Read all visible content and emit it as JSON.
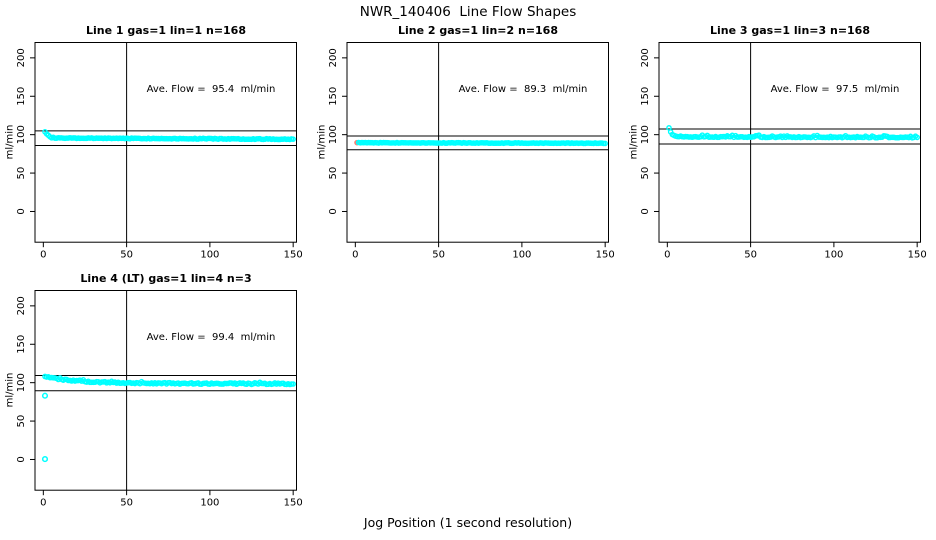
{
  "figure_title": "NWR_140406  Line Flow Shapes",
  "xlabel": "Jog Position (1 second resolution)",
  "colors": {
    "trace": "#00FFFF",
    "first_point": "#FA8072",
    "axis": "#000000",
    "background": "#FFFFFF"
  },
  "chart_data": [
    {
      "type": "scatter",
      "title": "Line 1 gas=1 lin=1 n=168",
      "annotation": "Ave. Flow =  95.4  ml/min",
      "ave_flow_ml_min": 95.4,
      "n": 168,
      "ylabel": "ml/min",
      "xlim": [
        -5,
        152
      ],
      "ylim": [
        -40,
        220
      ],
      "x_ticks": [
        0,
        50,
        100,
        150
      ],
      "y_ticks": [
        0,
        50,
        100,
        150,
        200
      ],
      "grid": false,
      "vline_x": 50,
      "hlines": [
        104.9,
        85.9
      ],
      "series": [
        {
          "name": "flow-trace",
          "color": "#00FFFF",
          "marker": "open-circle",
          "x_start": 1,
          "x_end": 150,
          "x_step": 1,
          "jitter": 0.5,
          "spike_prob": 0.0,
          "spike_max": 0,
          "shape_breakpoints": [
            [
              1,
              104
            ],
            [
              2,
              101.5
            ],
            [
              3,
              99.5
            ],
            [
              4,
              97.5
            ],
            [
              5,
              96.3
            ],
            [
              8,
              95.6
            ],
            [
              20,
              95.4
            ],
            [
              50,
              95.2
            ],
            [
              100,
              94.7
            ],
            [
              150,
              94.1
            ]
          ]
        }
      ],
      "outliers": []
    },
    {
      "type": "scatter",
      "title": "Line 2 gas=1 lin=2 n=168",
      "annotation": "Ave. Flow =  89.3  ml/min",
      "ave_flow_ml_min": 89.3,
      "n": 168,
      "ylabel": "ml/min",
      "xlim": [
        -5,
        152
      ],
      "ylim": [
        -40,
        220
      ],
      "x_ticks": [
        0,
        50,
        100,
        150
      ],
      "y_ticks": [
        0,
        50,
        100,
        150,
        200
      ],
      "grid": false,
      "vline_x": 50,
      "hlines": [
        98.2,
        80.4
      ],
      "series": [
        {
          "name": "first-point",
          "color": "#FA8072",
          "marker": "filled-circle",
          "points": [
            [
              1,
              89.6
            ]
          ]
        },
        {
          "name": "flow-trace",
          "color": "#00FFFF",
          "marker": "open-circle",
          "x_start": 2,
          "x_end": 150,
          "x_step": 1,
          "jitter": 0.35,
          "spike_prob": 0.0,
          "spike_max": 0,
          "shape_breakpoints": [
            [
              2,
              89.7
            ],
            [
              10,
              89.5
            ],
            [
              50,
              89.3
            ],
            [
              100,
              89.1
            ],
            [
              150,
              88.9
            ]
          ]
        }
      ],
      "outliers": []
    },
    {
      "type": "scatter",
      "title": "Line 3 gas=1 lin=3 n=168",
      "annotation": "Ave. Flow =  97.5  ml/min",
      "ave_flow_ml_min": 97.5,
      "n": 168,
      "ylabel": "ml/min",
      "xlim": [
        -5,
        152
      ],
      "ylim": [
        -40,
        220
      ],
      "x_ticks": [
        0,
        50,
        100,
        150
      ],
      "y_ticks": [
        0,
        50,
        100,
        150,
        200
      ],
      "grid": false,
      "vline_x": 50,
      "hlines": [
        107.3,
        87.8
      ],
      "series": [
        {
          "name": "flow-trace",
          "color": "#00FFFF",
          "marker": "open-circle",
          "x_start": 1,
          "x_end": 150,
          "x_step": 1,
          "jitter": 0.5,
          "spike_prob": 0.22,
          "spike_max": 2.4,
          "shape_breakpoints": [
            [
              1,
              108.5
            ],
            [
              2,
              104
            ],
            [
              3,
              100.5
            ],
            [
              4,
              98.8
            ],
            [
              6,
              97.6
            ],
            [
              10,
              97.2
            ],
            [
              50,
              96.9
            ],
            [
              100,
              96.6
            ],
            [
              150,
              96.3
            ]
          ]
        }
      ],
      "outliers": []
    },
    {
      "type": "scatter",
      "title": "Line 4 (LT) gas=1 lin=4 n=3",
      "annotation": "Ave. Flow =  99.4  ml/min",
      "ave_flow_ml_min": 99.4,
      "n": 3,
      "ylabel": "ml/min",
      "xlim": [
        -5,
        152
      ],
      "ylim": [
        -40,
        220
      ],
      "x_ticks": [
        0,
        50,
        100,
        150
      ],
      "y_ticks": [
        0,
        50,
        100,
        150,
        200
      ],
      "grid": false,
      "vline_x": 50,
      "hlines": [
        109.3,
        89.5
      ],
      "series": [
        {
          "name": "flow-trace",
          "color": "#00FFFF",
          "marker": "open-circle",
          "x_start": 1,
          "x_end": 150,
          "x_step": 1,
          "jitter": 0.9,
          "spike_prob": 0.15,
          "spike_max": 1.5,
          "shape_breakpoints": [
            [
              1,
              107.5
            ],
            [
              3,
              106.8
            ],
            [
              6,
              105.6
            ],
            [
              10,
              104.6
            ],
            [
              15,
              103.4
            ],
            [
              20,
              102.4
            ],
            [
              27,
              101.4
            ],
            [
              35,
              100.6
            ],
            [
              45,
              100.0
            ],
            [
              60,
              99.4
            ],
            [
              80,
              99.0
            ],
            [
              110,
              98.8
            ],
            [
              150,
              98.4
            ]
          ]
        }
      ],
      "outliers": [
        [
          1,
          83
        ],
        [
          1,
          0.5
        ]
      ]
    }
  ]
}
